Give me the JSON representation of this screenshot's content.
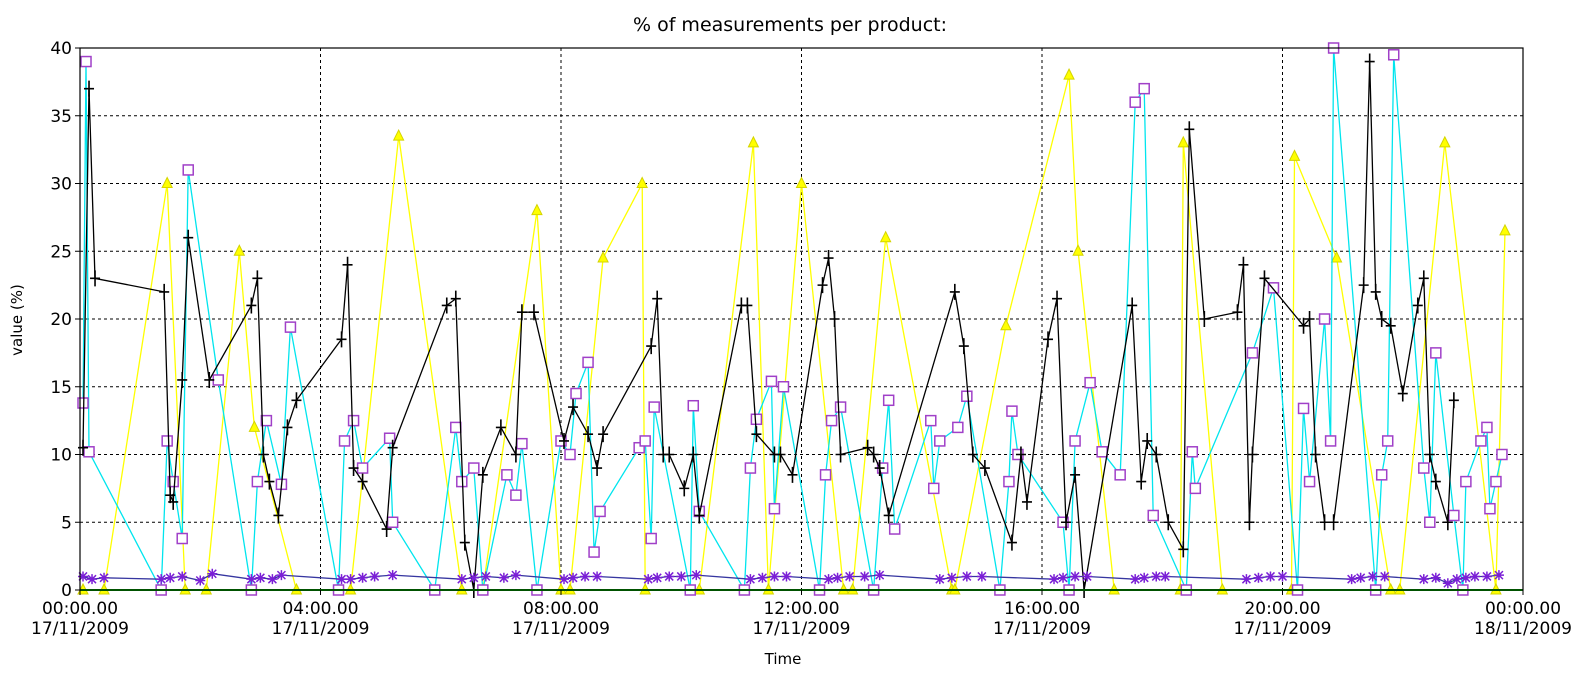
{
  "chart_data": {
    "type": "line",
    "title": "% of measurements per product:",
    "xlabel": "Time",
    "ylabel": "value (%)",
    "ylim": [
      0,
      40
    ],
    "xlim_hours": [
      0,
      24
    ],
    "y_ticks": [
      "0",
      "5",
      "10",
      "15",
      "20",
      "25",
      "30",
      "35",
      "40"
    ],
    "x_ticks": [
      {
        "time": "00:00.00",
        "date": "17/11/2009"
      },
      {
        "time": "04:00.00",
        "date": "17/11/2009"
      },
      {
        "time": "08:00.00",
        "date": "17/11/2009"
      },
      {
        "time": "12:00.00",
        "date": "17/11/2009"
      },
      {
        "time": "16:00.00",
        "date": "17/11/2009"
      },
      {
        "time": "20:00.00",
        "date": "17/11/2009"
      },
      {
        "time": "00:00.00",
        "date": "18/11/2009"
      }
    ],
    "grid": true,
    "legend": "none",
    "series": [
      {
        "color": "#ffff00",
        "marker": "triangle",
        "x": [
          0.05,
          0.4,
          1.45,
          1.75,
          2.1,
          2.65,
          2.9,
          3.6,
          4.5,
          5.3,
          6.35,
          6.7,
          7.6,
          8.0,
          8.15,
          8.7,
          9.35,
          9.4,
          10.3,
          11.2,
          11.45,
          12.0,
          12.7,
          12.85,
          13.4,
          14.5,
          14.55,
          15.4,
          16.45,
          16.6,
          17.2,
          18.3,
          18.35,
          19.0,
          20.15,
          20.2,
          20.9,
          21.8,
          21.95,
          22.7,
          23.55,
          23.7
        ],
        "y": [
          0,
          0,
          30,
          0,
          0,
          25,
          12,
          0,
          0,
          33.5,
          0,
          0,
          28,
          0,
          0,
          24.5,
          30,
          0,
          0,
          33,
          0,
          30,
          0,
          0,
          26,
          0,
          0,
          19.5,
          38,
          25,
          0,
          0,
          33,
          0,
          0,
          32,
          24.5,
          0,
          0,
          33,
          0,
          26.5
        ]
      },
      {
        "color": "#00e5ee",
        "marker": "square",
        "x": [
          0.05,
          0.1,
          0.15,
          1.35,
          1.45,
          1.55,
          1.7,
          1.8,
          2.3,
          2.85,
          2.95,
          3.1,
          3.35,
          3.5,
          4.3,
          4.4,
          4.55,
          4.7,
          5.15,
          5.2,
          5.9,
          6.25,
          6.35,
          6.55,
          6.7,
          7.1,
          7.25,
          7.35,
          7.6,
          8.0,
          8.15,
          8.25,
          8.45,
          8.55,
          8.65,
          9.3,
          9.4,
          9.5,
          9.55,
          10.15,
          10.2,
          10.3,
          11.05,
          11.15,
          11.25,
          11.5,
          11.55,
          11.7,
          12.3,
          12.4,
          12.5,
          12.65,
          13.2,
          13.35,
          13.45,
          13.55,
          14.15,
          14.2,
          14.3,
          14.6,
          14.75,
          15.3,
          15.45,
          15.5,
          15.6,
          16.35,
          16.45,
          16.55,
          16.8,
          17.0,
          17.3,
          17.55,
          17.7,
          17.85,
          18.4,
          18.5,
          18.55,
          19.5,
          19.85,
          20.25,
          20.35,
          20.45,
          20.7,
          20.8,
          20.85,
          21.55,
          21.65,
          21.75,
          21.85,
          22.35,
          22.45,
          22.55,
          22.85,
          23.0,
          23.05,
          23.3,
          23.4,
          23.45,
          23.55,
          23.65
        ],
        "y": [
          13.8,
          39,
          10.2,
          0,
          11,
          8,
          3.8,
          31,
          15.5,
          0,
          8,
          12.5,
          7.8,
          19.4,
          0,
          11,
          12.5,
          9,
          11.2,
          5,
          0,
          12,
          8,
          9,
          0,
          8.5,
          7,
          10.8,
          0,
          11,
          10,
          14.5,
          16.8,
          2.8,
          5.8,
          10.5,
          11,
          3.8,
          13.5,
          0,
          13.6,
          5.8,
          0,
          9,
          12.6,
          15.4,
          6,
          15,
          0,
          8.5,
          12.5,
          13.5,
          0,
          9,
          14,
          4.5,
          12.5,
          7.5,
          11,
          12,
          14.3,
          0,
          8,
          13.2,
          10,
          5,
          0,
          11,
          15.3,
          10.2,
          8.5,
          36,
          37,
          5.5,
          0,
          10.2,
          7.5,
          17.5,
          22.3,
          0,
          13.4,
          8,
          20,
          11,
          40,
          0,
          8.5,
          11,
          39.5,
          9,
          5,
          17.5,
          5.5,
          0,
          8,
          11,
          12,
          6,
          8,
          10
        ]
      },
      {
        "color": "#000000",
        "marker": "bar",
        "x": [
          0.05,
          0.15,
          0.25,
          1.4,
          1.5,
          1.55,
          1.7,
          1.8,
          2.15,
          2.85,
          2.95,
          3.05,
          3.15,
          3.3,
          3.45,
          3.6,
          4.35,
          4.45,
          4.55,
          4.7,
          5.1,
          5.2,
          6.1,
          6.25,
          6.4,
          6.55,
          6.7,
          7.0,
          7.25,
          7.35,
          7.55,
          8.05,
          8.2,
          8.45,
          8.6,
          8.7,
          9.5,
          9.6,
          9.7,
          9.8,
          10.05,
          10.2,
          10.3,
          11.0,
          11.1,
          11.25,
          11.55,
          11.65,
          11.85,
          12.35,
          12.45,
          12.55,
          12.65,
          13.1,
          13.2,
          13.3,
          13.45,
          14.55,
          14.7,
          14.85,
          15.05,
          15.5,
          15.65,
          15.75,
          16.1,
          16.25,
          16.4,
          16.55,
          16.7,
          17.5,
          17.65,
          17.75,
          17.9,
          18.1,
          18.35,
          18.45,
          18.7,
          19.25,
          19.35,
          19.45,
          19.5,
          19.7,
          20.35,
          20.45,
          20.55,
          20.7,
          20.85,
          21.35,
          21.45,
          21.55,
          21.65,
          21.8,
          22.0,
          22.25,
          22.35,
          22.45,
          22.55,
          22.75,
          22.85
        ],
        "y": [
          10.5,
          37,
          23,
          22,
          7,
          6.5,
          15.5,
          26,
          15.5,
          21,
          23,
          10,
          8,
          5.5,
          12,
          14,
          18.5,
          24,
          9,
          8,
          4.5,
          10.5,
          21,
          21.5,
          3.5,
          0,
          8.5,
          12,
          10,
          20.5,
          20.5,
          11,
          13.5,
          11.5,
          9,
          11.5,
          18,
          21.5,
          10,
          10,
          7.5,
          10,
          5.5,
          21,
          21,
          11.5,
          10,
          10,
          8.5,
          22.5,
          24.5,
          20,
          10,
          10.5,
          10,
          9,
          5.5,
          22,
          18,
          10,
          9,
          3.5,
          10,
          6.5,
          18.5,
          21.5,
          5,
          8.5,
          0,
          21,
          8,
          11,
          10,
          5,
          3,
          34,
          20,
          20.5,
          24,
          5,
          10,
          23,
          19.5,
          20,
          10,
          5,
          5,
          22.5,
          39,
          22,
          20,
          19.5,
          14.5,
          21,
          23,
          10,
          8,
          5,
          14
        ]
      },
      {
        "color": "#3636a0",
        "marker": "star",
        "x": [
          0.05,
          0.2,
          0.4,
          1.35,
          1.5,
          1.7,
          2.0,
          2.2,
          2.85,
          3.0,
          3.2,
          3.35,
          4.35,
          4.5,
          4.7,
          4.9,
          5.2,
          6.35,
          6.55,
          6.75,
          7.05,
          7.25,
          8.05,
          8.2,
          8.4,
          8.6,
          9.45,
          9.6,
          9.8,
          10.0,
          10.25,
          11.15,
          11.35,
          11.55,
          11.75,
          12.45,
          12.6,
          12.8,
          13.05,
          13.3,
          14.3,
          14.5,
          14.75,
          15.0,
          16.2,
          16.35,
          16.55,
          16.75,
          17.55,
          17.7,
          17.9,
          18.05,
          19.4,
          19.6,
          19.8,
          20.0,
          21.15,
          21.3,
          21.5,
          21.7,
          22.35,
          22.55,
          22.75,
          22.9,
          23.05,
          23.2,
          23.4,
          23.6
        ],
        "y": [
          1,
          0.8,
          0.9,
          0.8,
          0.9,
          1,
          0.7,
          1.2,
          0.8,
          0.9,
          0.8,
          1.1,
          0.8,
          0.8,
          0.9,
          1,
          1.1,
          0.8,
          0.9,
          1,
          0.9,
          1.1,
          0.8,
          0.9,
          1,
          1,
          0.8,
          0.9,
          1,
          1,
          1.1,
          0.8,
          0.9,
          1,
          1,
          0.8,
          0.9,
          1,
          1,
          1.1,
          0.8,
          0.9,
          1,
          1,
          0.8,
          0.9,
          1,
          1,
          0.8,
          0.9,
          1,
          1,
          0.8,
          0.9,
          1,
          1,
          0.8,
          0.9,
          1,
          1,
          0.8,
          0.9,
          0.5,
          0.8,
          0.9,
          1,
          1,
          1.1
        ]
      },
      {
        "color": "#00cc00",
        "marker": "none",
        "x": [
          0,
          24
        ],
        "y": [
          0,
          0
        ]
      }
    ]
  }
}
